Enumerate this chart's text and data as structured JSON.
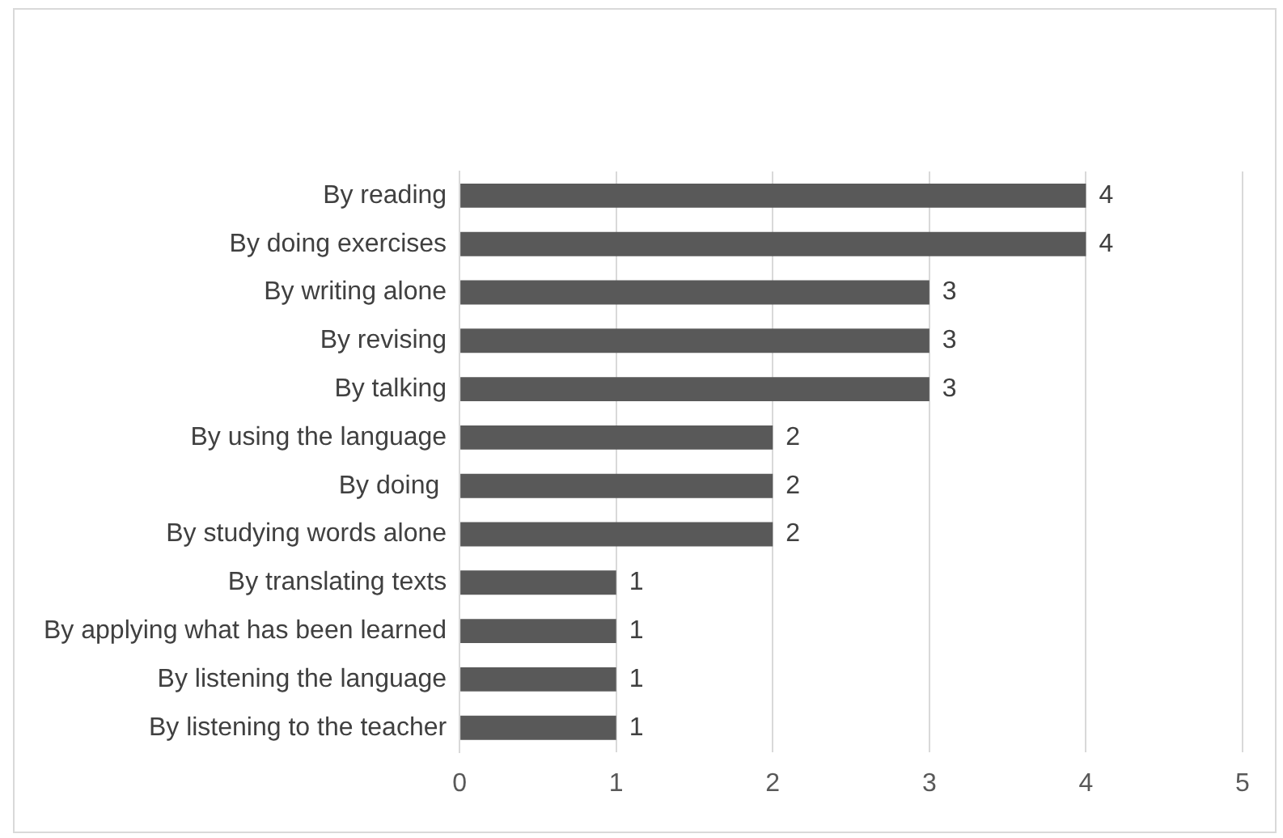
{
  "chart_data": {
    "type": "bar",
    "orientation": "horizontal",
    "categories": [
      "By reading",
      "By doing exercises",
      "By writing alone",
      "By revising",
      "By talking",
      "By using the language",
      "By doing ",
      "By studying words alone",
      "By translating texts",
      "By applying what has been learned",
      "By listening the language",
      "By listening to the teacher"
    ],
    "values": [
      4,
      4,
      3,
      3,
      3,
      2,
      2,
      2,
      1,
      1,
      1,
      1
    ],
    "color": "#595959",
    "xlim": [
      0,
      5
    ],
    "xticks": [
      0,
      1,
      2,
      3,
      4,
      5
    ],
    "grid": "x",
    "data_labels": true
  }
}
